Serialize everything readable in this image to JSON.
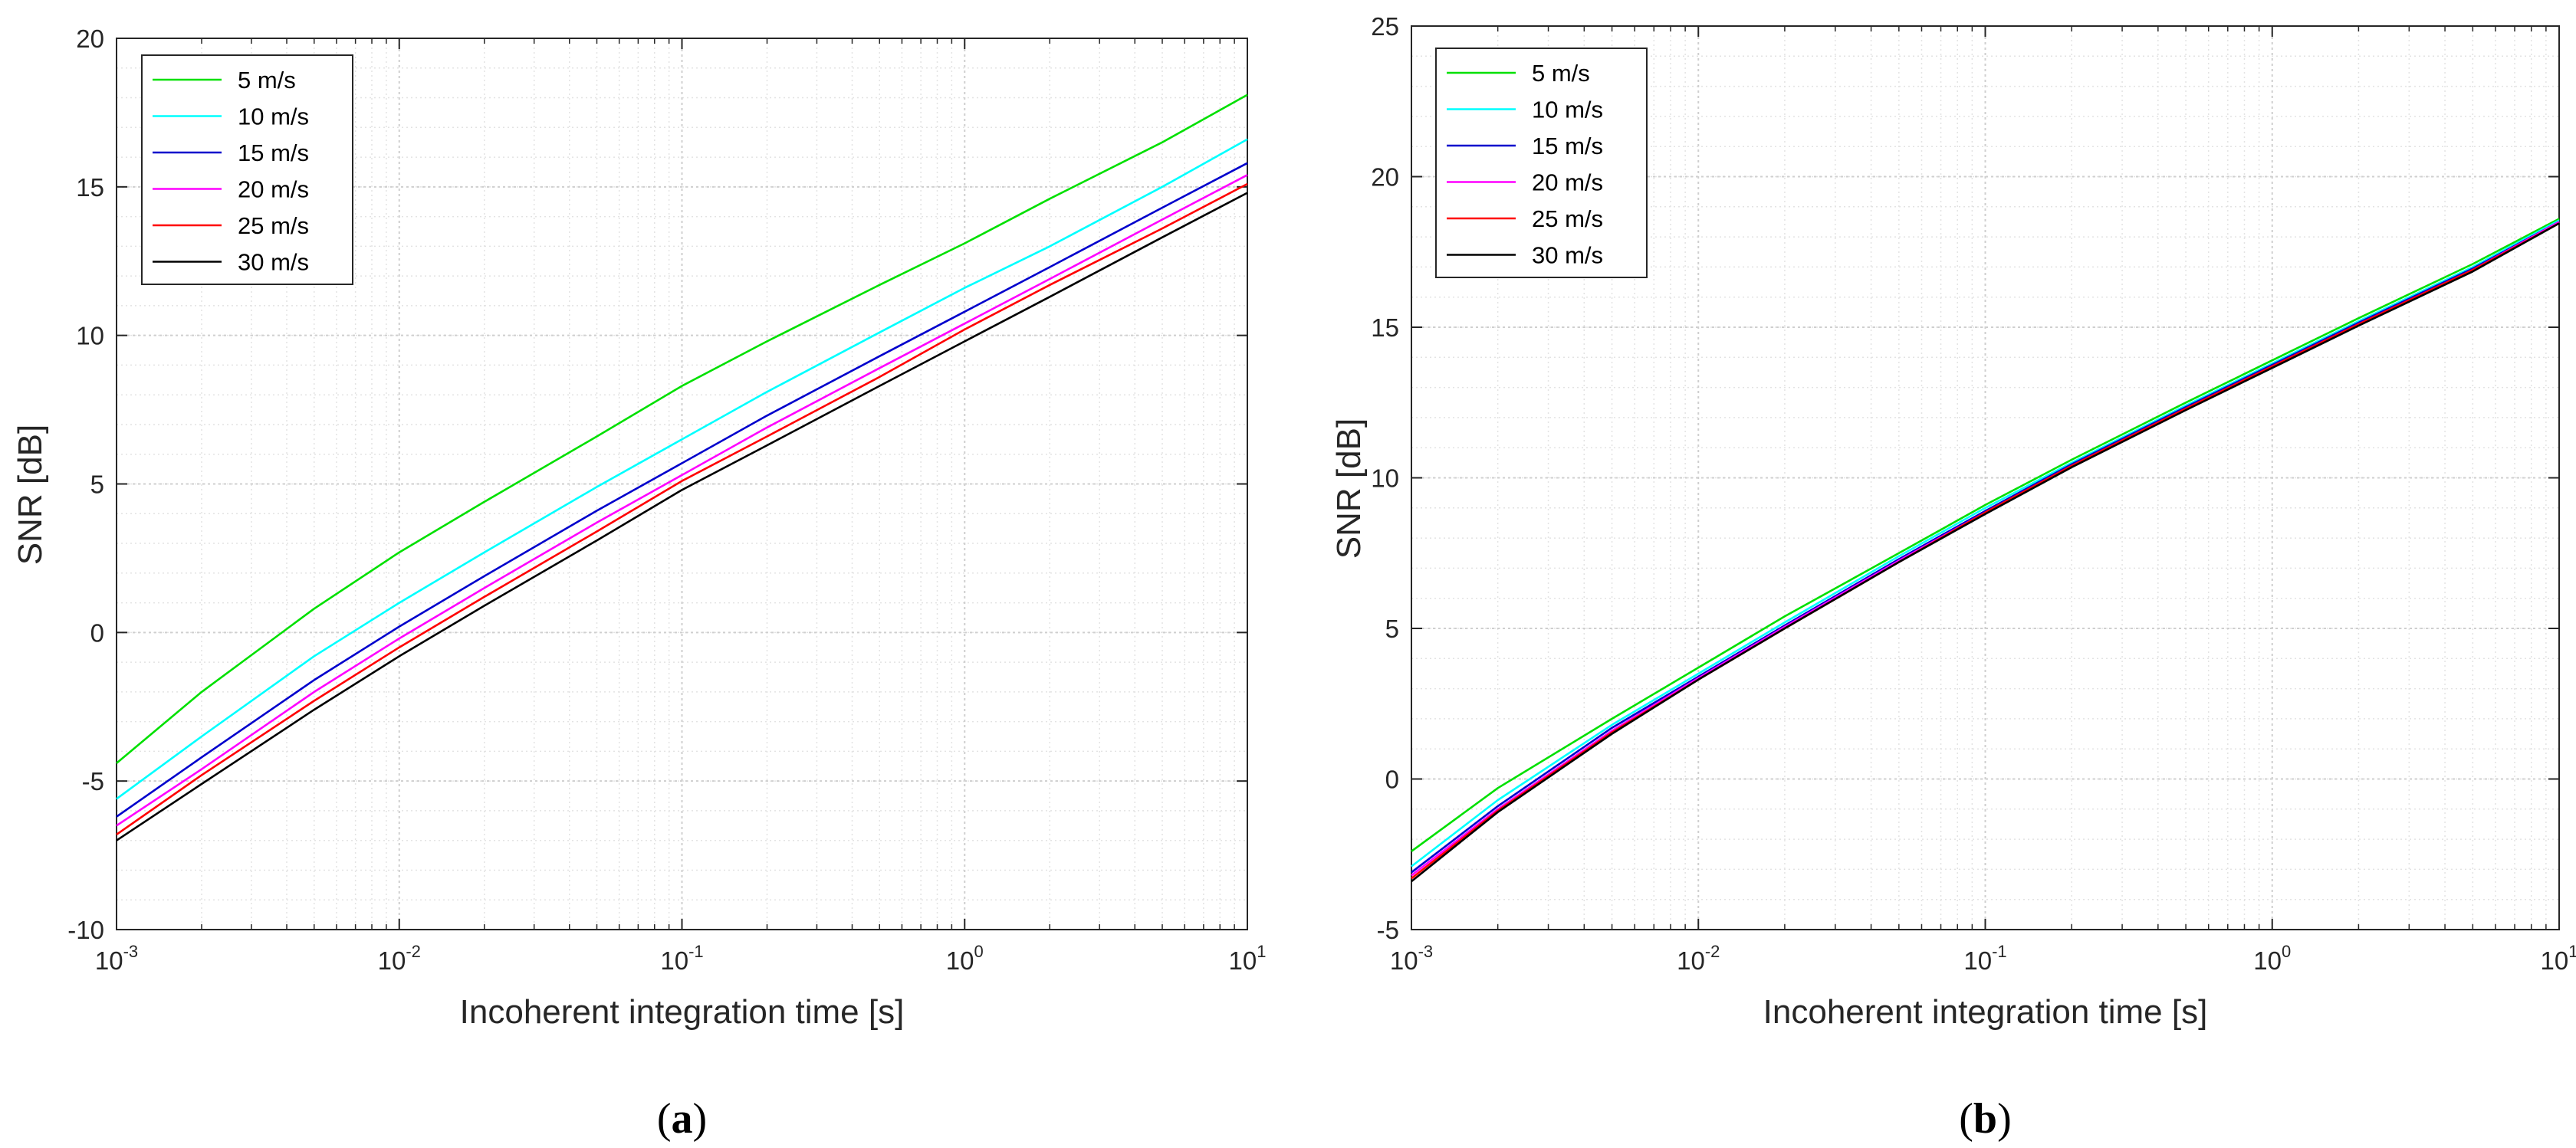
{
  "chart_data": [
    {
      "type": "line",
      "panel_label": "a",
      "xlabel": "Incoherent integration time [s]",
      "ylabel": "SNR [dB]",
      "xscale": "log",
      "xlim": [
        0.001,
        10
      ],
      "ylim": [
        -10,
        20
      ],
      "yticks": [
        -10,
        -5,
        0,
        5,
        10,
        15,
        20
      ],
      "xticks": [
        {
          "base": "10",
          "exp": "-3"
        },
        {
          "base": "10",
          "exp": "-2"
        },
        {
          "base": "10",
          "exp": "-1"
        },
        {
          "base": "10",
          "exp": "0"
        },
        {
          "base": "10",
          "exp": "1"
        }
      ],
      "grid": true,
      "minor_grid": true,
      "legend_position": "top-left",
      "x": [
        0.001,
        0.002,
        0.005,
        0.01,
        0.02,
        0.05,
        0.1,
        0.2,
        0.5,
        1,
        2,
        5,
        10
      ],
      "series": [
        {
          "name": "5 m/s",
          "color": "#00e000",
          "values": [
            -4.4,
            -2.0,
            0.8,
            2.7,
            4.4,
            6.6,
            8.3,
            9.8,
            11.7,
            13.1,
            14.6,
            16.5,
            18.1
          ]
        },
        {
          "name": "10 m/s",
          "color": "#00ffff",
          "values": [
            -5.6,
            -3.5,
            -0.8,
            1.0,
            2.7,
            4.9,
            6.5,
            8.1,
            10.1,
            11.6,
            13.0,
            15.0,
            16.6
          ]
        },
        {
          "name": "15 m/s",
          "color": "#0000cc",
          "values": [
            -6.2,
            -4.2,
            -1.6,
            0.2,
            1.9,
            4.1,
            5.7,
            7.3,
            9.3,
            10.8,
            12.3,
            14.3,
            15.8
          ]
        },
        {
          "name": "20 m/s",
          "color": "#ff00ff",
          "values": [
            -6.5,
            -4.6,
            -2.0,
            -0.2,
            1.5,
            3.7,
            5.3,
            6.9,
            8.9,
            10.4,
            11.9,
            13.9,
            15.4
          ]
        },
        {
          "name": "25 m/s",
          "color": "#ff0000",
          "values": [
            -6.8,
            -4.8,
            -2.3,
            -0.5,
            1.2,
            3.4,
            5.1,
            6.6,
            8.6,
            10.2,
            11.7,
            13.6,
            15.1
          ]
        },
        {
          "name": "30 m/s",
          "color": "#000000",
          "values": [
            -7.0,
            -5.1,
            -2.6,
            -0.8,
            0.9,
            3.1,
            4.8,
            6.3,
            8.3,
            9.8,
            11.3,
            13.3,
            14.8
          ]
        }
      ]
    },
    {
      "type": "line",
      "panel_label": "b",
      "xlabel": "Incoherent integration time [s]",
      "ylabel": "SNR [dB]",
      "xscale": "log",
      "xlim": [
        0.001,
        10
      ],
      "ylim": [
        -5,
        25
      ],
      "yticks": [
        -5,
        0,
        5,
        10,
        15,
        20,
        25
      ],
      "xticks": [
        {
          "base": "10",
          "exp": "-3"
        },
        {
          "base": "10",
          "exp": "-2"
        },
        {
          "base": "10",
          "exp": "-1"
        },
        {
          "base": "10",
          "exp": "0"
        },
        {
          "base": "10",
          "exp": "1"
        }
      ],
      "grid": true,
      "minor_grid": true,
      "legend_position": "top-left",
      "x": [
        0.001,
        0.002,
        0.005,
        0.01,
        0.02,
        0.05,
        0.1,
        0.2,
        0.5,
        1,
        2,
        5,
        10
      ],
      "series": [
        {
          "name": "5 m/s",
          "color": "#00e000",
          "values": [
            -2.4,
            -0.3,
            2.0,
            3.7,
            5.4,
            7.5,
            9.1,
            10.6,
            12.5,
            13.9,
            15.3,
            17.1,
            18.6
          ]
        },
        {
          "name": "10 m/s",
          "color": "#00ffff",
          "values": [
            -2.9,
            -0.7,
            1.8,
            3.5,
            5.2,
            7.4,
            9.0,
            10.5,
            12.4,
            13.8,
            15.2,
            17.0,
            18.55
          ]
        },
        {
          "name": "15 m/s",
          "color": "#0000cc",
          "values": [
            -3.1,
            -0.9,
            1.7,
            3.4,
            5.1,
            7.3,
            8.9,
            10.45,
            12.35,
            13.75,
            15.15,
            16.95,
            18.5
          ]
        },
        {
          "name": "20 m/s",
          "color": "#ff00ff",
          "values": [
            -3.2,
            -1.0,
            1.6,
            3.35,
            5.05,
            7.25,
            8.85,
            10.4,
            12.3,
            13.7,
            15.1,
            16.9,
            18.5
          ]
        },
        {
          "name": "25 m/s",
          "color": "#ff0000",
          "values": [
            -3.3,
            -1.05,
            1.55,
            3.3,
            5.0,
            7.2,
            8.85,
            10.4,
            12.3,
            13.7,
            15.1,
            16.9,
            18.45
          ]
        },
        {
          "name": "30 m/s",
          "color": "#000000",
          "values": [
            -3.4,
            -1.1,
            1.5,
            3.3,
            5.0,
            7.2,
            8.8,
            10.35,
            12.25,
            13.65,
            15.05,
            16.85,
            18.45
          ]
        }
      ]
    }
  ]
}
